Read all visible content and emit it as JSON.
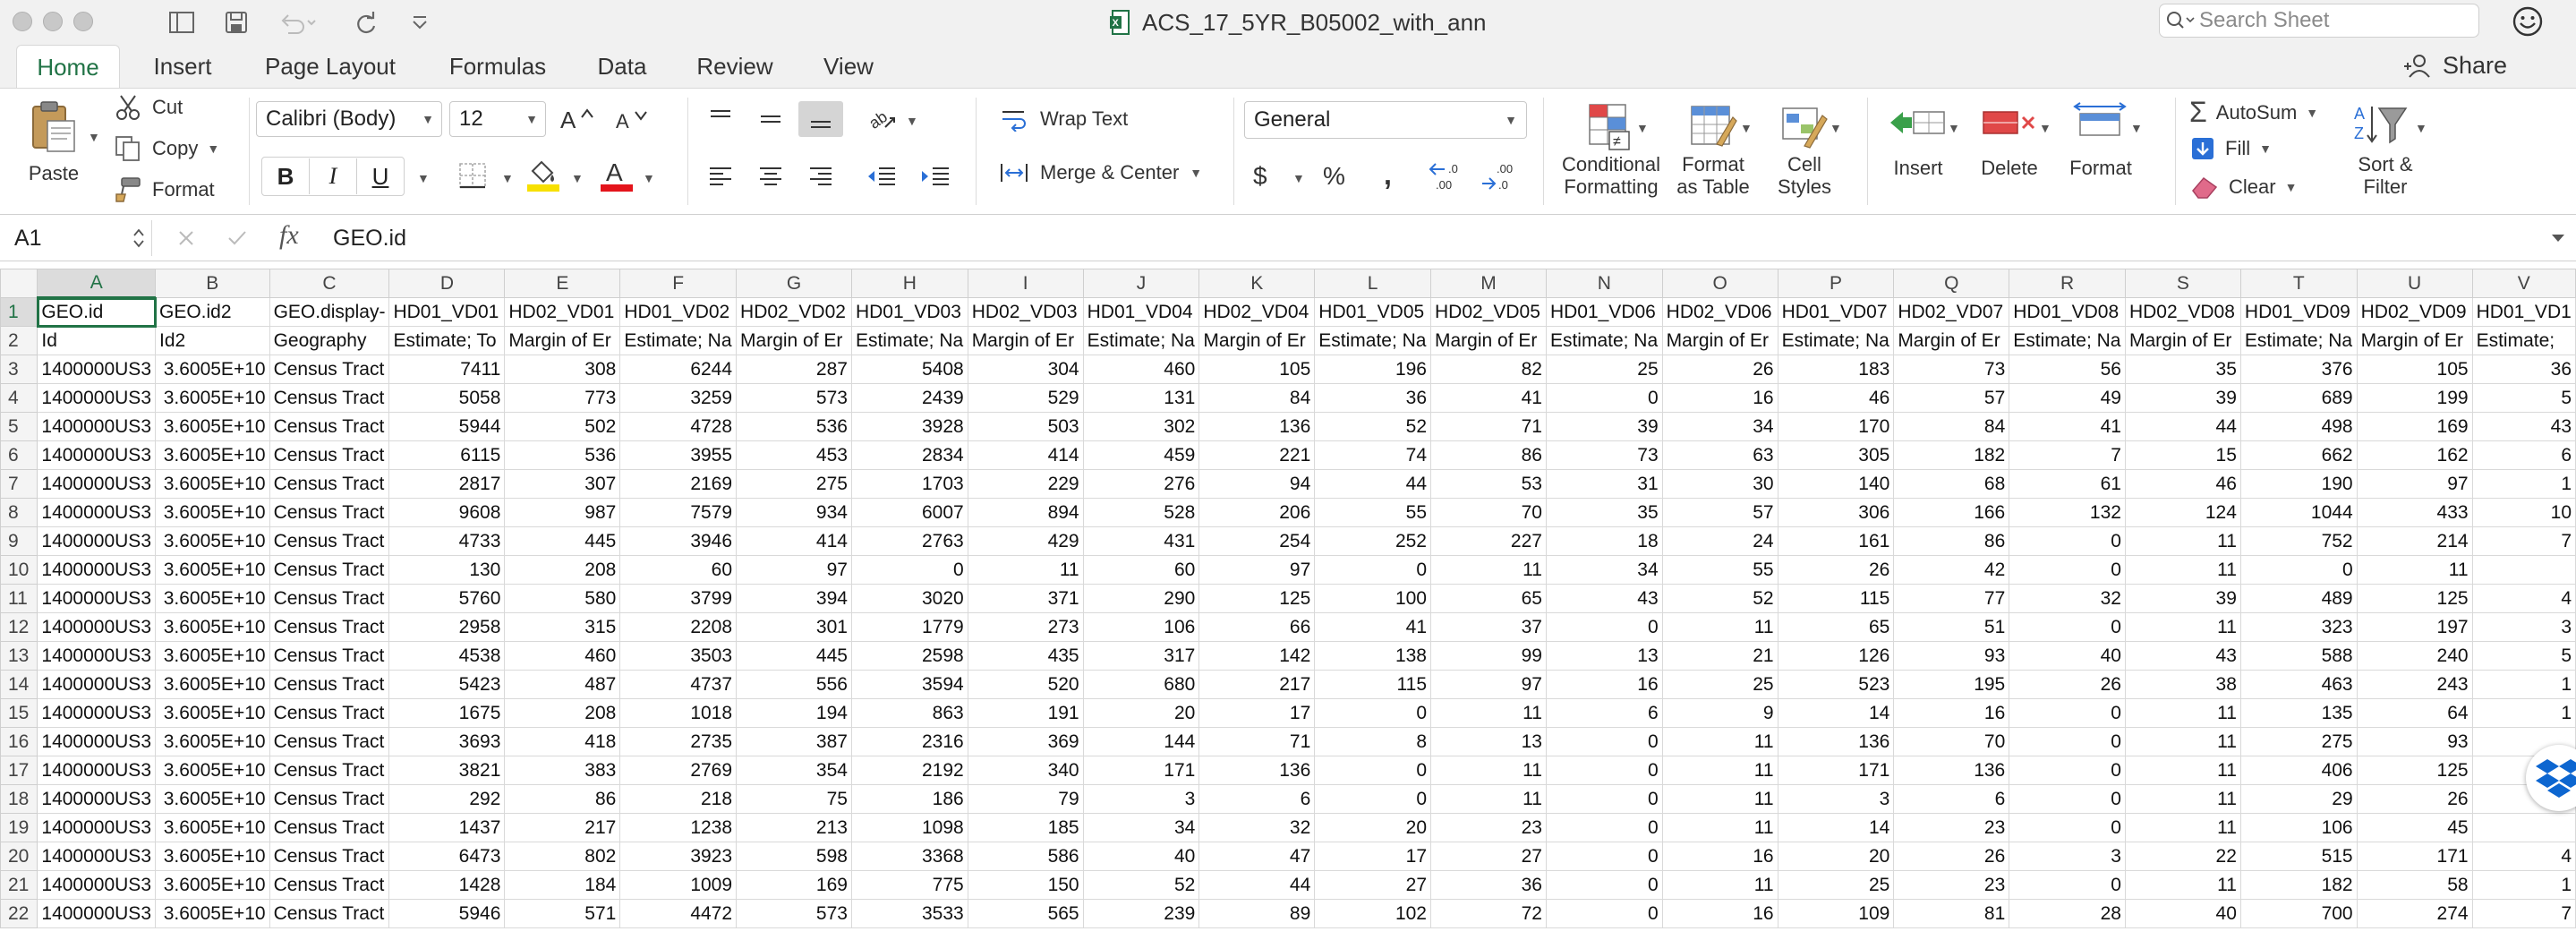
{
  "window": {
    "title": "ACS_17_5YR_B05002_with_ann",
    "search_placeholder": "Search Sheet"
  },
  "tabs": [
    "Home",
    "Insert",
    "Page Layout",
    "Formulas",
    "Data",
    "Review",
    "View"
  ],
  "share_label": "Share",
  "ribbon": {
    "paste": "Paste",
    "cut": "Cut",
    "copy": "Copy",
    "format_painter": "Format",
    "font_name": "Calibri (Body)",
    "font_size": "12",
    "bold": "B",
    "italic": "I",
    "underline": "U",
    "wrap_text": "Wrap Text",
    "merge_center": "Merge & Center",
    "number_format": "General",
    "currency": "$",
    "percent": "%",
    "comma": ",",
    "cond_format_1": "Conditional",
    "cond_format_2": "Formatting",
    "format_table_1": "Format",
    "format_table_2": "as Table",
    "cell_styles_1": "Cell",
    "cell_styles_2": "Styles",
    "insert": "Insert",
    "delete": "Delete",
    "format": "Format",
    "autosum": "AutoSum",
    "fill": "Fill",
    "clear": "Clear",
    "sort_filter_1": "Sort &",
    "sort_filter_2": "Filter"
  },
  "formula_bar": {
    "name_box": "A1",
    "fx": "fx",
    "value": "GEO.id"
  },
  "columns": [
    "A",
    "B",
    "C",
    "D",
    "E",
    "F",
    "G",
    "H",
    "I",
    "J",
    "K",
    "L",
    "M",
    "N",
    "O",
    "P",
    "Q",
    "R",
    "S",
    "T",
    "U",
    "V"
  ],
  "header_row_1": [
    "GEO.id",
    "GEO.id2",
    "GEO.display-",
    "HD01_VD01",
    "HD02_VD01",
    "HD01_VD02",
    "HD02_VD02",
    "HD01_VD03",
    "HD02_VD03",
    "HD01_VD04",
    "HD02_VD04",
    "HD01_VD05",
    "HD02_VD05",
    "HD01_VD06",
    "HD02_VD06",
    "HD01_VD07",
    "HD02_VD07",
    "HD01_VD08",
    "HD02_VD08",
    "HD01_VD09",
    "HD02_VD09",
    "HD01_VD1"
  ],
  "header_row_2": [
    "Id",
    "Id2",
    "Geography",
    "Estimate; To",
    "Margin of Er",
    "Estimate; Na",
    "Margin of Er",
    "Estimate; Na",
    "Margin of Er",
    "Estimate; Na",
    "Margin of Er",
    "Estimate; Na",
    "Margin of Er",
    "Estimate; Na",
    "Margin of Er",
    "Estimate; Na",
    "Margin of Er",
    "Estimate; Na",
    "Margin of Er",
    "Estimate; Na",
    "Margin of Er",
    "Estimate;"
  ],
  "row_id": "1400000US3",
  "row_id2": "3.6005E+10",
  "row_geo": "Census Tract",
  "data_rows": [
    [
      7411,
      308,
      6244,
      287,
      5408,
      304,
      460,
      105,
      196,
      82,
      25,
      26,
      183,
      73,
      56,
      35,
      376,
      105,
      "36"
    ],
    [
      5058,
      773,
      3259,
      573,
      2439,
      529,
      131,
      84,
      36,
      41,
      0,
      16,
      46,
      57,
      49,
      39,
      689,
      199,
      "5"
    ],
    [
      5944,
      502,
      4728,
      536,
      3928,
      503,
      302,
      136,
      52,
      71,
      39,
      34,
      170,
      84,
      41,
      44,
      498,
      169,
      "43"
    ],
    [
      6115,
      536,
      3955,
      453,
      2834,
      414,
      459,
      221,
      74,
      86,
      73,
      63,
      305,
      182,
      7,
      15,
      662,
      162,
      "6"
    ],
    [
      2817,
      307,
      2169,
      275,
      1703,
      229,
      276,
      94,
      44,
      53,
      31,
      30,
      140,
      68,
      61,
      46,
      190,
      97,
      "1"
    ],
    [
      9608,
      987,
      7579,
      934,
      6007,
      894,
      528,
      206,
      55,
      70,
      35,
      57,
      306,
      166,
      132,
      124,
      1044,
      433,
      "10"
    ],
    [
      4733,
      445,
      3946,
      414,
      2763,
      429,
      431,
      254,
      252,
      227,
      18,
      24,
      161,
      86,
      0,
      11,
      752,
      214,
      "7"
    ],
    [
      130,
      208,
      60,
      97,
      0,
      11,
      60,
      97,
      0,
      11,
      34,
      55,
      26,
      42,
      0,
      11,
      0,
      11,
      ""
    ],
    [
      5760,
      580,
      3799,
      394,
      3020,
      371,
      290,
      125,
      100,
      65,
      43,
      52,
      115,
      77,
      32,
      39,
      489,
      125,
      "4"
    ],
    [
      2958,
      315,
      2208,
      301,
      1779,
      273,
      106,
      66,
      41,
      37,
      0,
      11,
      65,
      51,
      0,
      11,
      323,
      197,
      "3"
    ],
    [
      4538,
      460,
      3503,
      445,
      2598,
      435,
      317,
      142,
      138,
      99,
      13,
      21,
      126,
      93,
      40,
      43,
      588,
      240,
      "5"
    ],
    [
      5423,
      487,
      4737,
      556,
      3594,
      520,
      680,
      217,
      115,
      97,
      16,
      25,
      523,
      195,
      26,
      38,
      463,
      243,
      "1"
    ],
    [
      1675,
      208,
      1018,
      194,
      863,
      191,
      20,
      17,
      0,
      11,
      6,
      9,
      14,
      16,
      0,
      11,
      135,
      64,
      "1"
    ],
    [
      3693,
      418,
      2735,
      387,
      2316,
      369,
      144,
      71,
      8,
      13,
      0,
      11,
      136,
      70,
      0,
      11,
      275,
      93,
      ""
    ],
    [
      3821,
      383,
      2769,
      354,
      2192,
      340,
      171,
      136,
      0,
      11,
      0,
      11,
      171,
      136,
      0,
      11,
      406,
      125,
      ""
    ],
    [
      292,
      86,
      218,
      75,
      186,
      79,
      3,
      6,
      0,
      11,
      0,
      11,
      3,
      6,
      0,
      11,
      29,
      26,
      ""
    ],
    [
      1437,
      217,
      1238,
      213,
      1098,
      185,
      34,
      32,
      20,
      23,
      0,
      11,
      14,
      23,
      0,
      11,
      106,
      45,
      ""
    ],
    [
      6473,
      802,
      3923,
      598,
      3368,
      586,
      40,
      47,
      17,
      27,
      0,
      16,
      20,
      26,
      3,
      22,
      515,
      171,
      "4"
    ],
    [
      1428,
      184,
      1009,
      169,
      775,
      150,
      52,
      44,
      27,
      36,
      0,
      11,
      25,
      23,
      0,
      11,
      182,
      58,
      "1"
    ],
    [
      5946,
      571,
      4472,
      573,
      3533,
      565,
      239,
      89,
      102,
      72,
      0,
      16,
      109,
      81,
      28,
      40,
      700,
      274,
      "7"
    ]
  ]
}
